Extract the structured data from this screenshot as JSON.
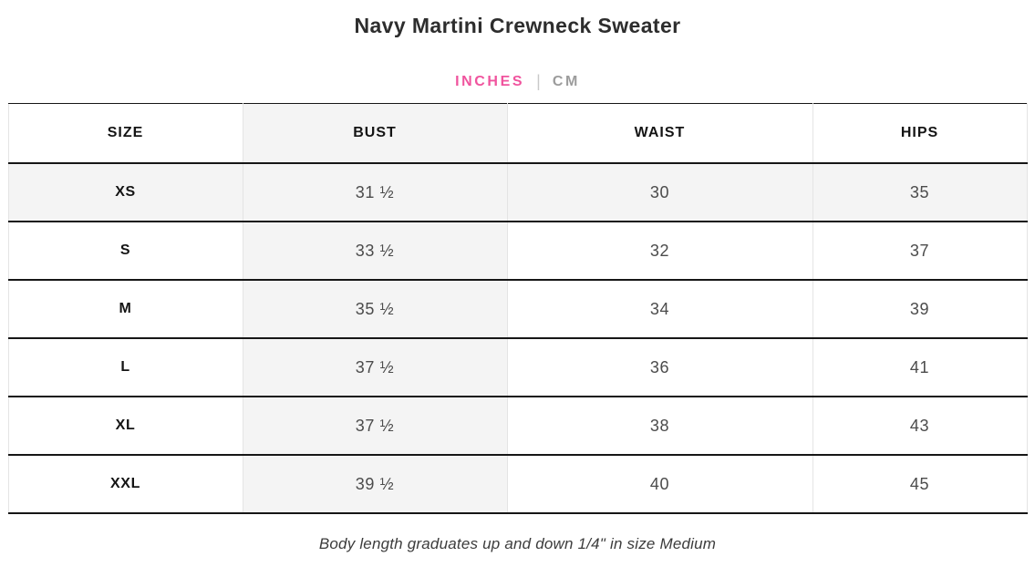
{
  "title": "Navy Martini Crewneck Sweater",
  "unit_toggle": {
    "inches_label": "INCHES",
    "separator": "|",
    "cm_label": "CM",
    "active_unit": "INCHES"
  },
  "table": {
    "headers": [
      "SIZE",
      "BUST",
      "WAIST",
      "HIPS"
    ],
    "rows": [
      [
        "XS",
        "31 ½",
        "30",
        "35"
      ],
      [
        "S",
        "33 ½",
        "32",
        "37"
      ],
      [
        "M",
        "35 ½",
        "34",
        "39"
      ],
      [
        "L",
        "37 ½",
        "36",
        "41"
      ],
      [
        "XL",
        "37 ½",
        "38",
        "43"
      ],
      [
        "XXL",
        "39 ½",
        "40",
        "45"
      ]
    ],
    "highlighted_row_index": 0,
    "highlighted_column": "BUST"
  },
  "footnote": "Body length graduates up and down 1/4\" in size Medium",
  "colors": {
    "accent_pink": "#f0549e",
    "inactive_gray": "#9c9c9c",
    "cell_shade": "#f4f4f4",
    "border_dark": "#161616",
    "border_light": "#e4e4e4"
  }
}
